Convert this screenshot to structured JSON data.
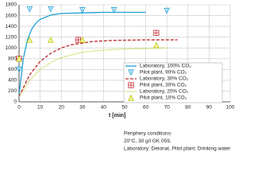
{
  "chart_data": {
    "type": "line",
    "x_label": "t [min]",
    "xlim": [
      0,
      100
    ],
    "xticks": [
      0,
      10,
      20,
      30,
      40,
      50,
      60,
      70,
      80,
      90,
      100
    ],
    "ylim": [
      0,
      1800
    ],
    "yticks": [
      0,
      200,
      400,
      600,
      800,
      1000,
      1200,
      1400,
      1600,
      1800
    ],
    "grid": true,
    "legend": "right",
    "series": [
      {
        "name": "Laboratory, 100% CO₂",
        "color": "#1ea0d8",
        "style": "solid",
        "x": [
          0,
          2,
          4,
          6,
          8,
          10,
          15,
          20,
          30,
          40,
          50,
          60
        ],
        "values": [
          120,
          800,
          1150,
          1350,
          1460,
          1530,
          1610,
          1640,
          1650,
          1660,
          1660,
          1660
        ]
      },
      {
        "name": "Pilot plant, 90% CO₂",
        "color": "#1ea0d8",
        "marker": "triangle-down",
        "x": [
          0,
          5,
          15,
          30,
          45,
          70
        ],
        "values": [
          600,
          1720,
          1720,
          1700,
          1700,
          1690
        ]
      },
      {
        "name": "Laboratory, 30% CO₂",
        "color": "#c0282d",
        "style": "dashed",
        "x": [
          0,
          5,
          10,
          15,
          20,
          25,
          35,
          45,
          60,
          75
        ],
        "values": [
          100,
          500,
          750,
          900,
          1000,
          1060,
          1120,
          1140,
          1150,
          1150
        ]
      },
      {
        "name": "Pilot plant, 30% CO₂",
        "color": "#c0282d",
        "marker": "square",
        "x": [
          0,
          28,
          65
        ],
        "values": [
          800,
          1150,
          1280
        ]
      },
      {
        "name": "Laboratory, 20% CO₂",
        "color": "#b8c200",
        "style": "dotted",
        "x": [
          0,
          5,
          10,
          15,
          20,
          30,
          40,
          50,
          60,
          70
        ],
        "values": [
          100,
          400,
          600,
          730,
          820,
          920,
          960,
          980,
          990,
          1000
        ]
      },
      {
        "name": "Pilot plant, 10% CO₂",
        "color": "#b8c200",
        "marker": "triangle-up",
        "x": [
          0,
          5,
          15,
          30,
          65
        ],
        "values": [
          800,
          1150,
          1150,
          1150,
          1050
        ]
      }
    ],
    "annotations": [
      "Periphery conditions:",
      "20°C, 30 g/l GK 059,",
      "Laboratory: Deionat, Pilot plant: Drinking water"
    ]
  }
}
